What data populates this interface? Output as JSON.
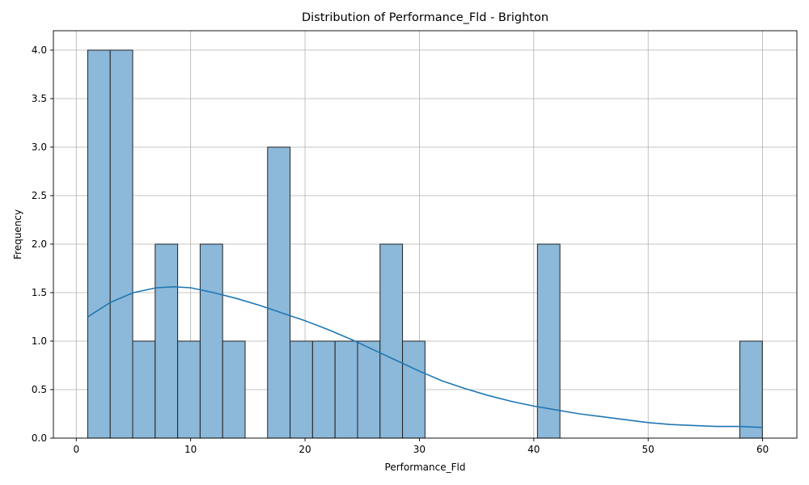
{
  "chart_data": {
    "type": "bar",
    "title": "Distribution of Performance_Fld - Brighton",
    "xlabel": "Performance_Fld",
    "ylabel": "Frequency",
    "xlim": [
      -2,
      63
    ],
    "ylim": [
      0,
      4.2
    ],
    "xticks": [
      0,
      10,
      20,
      30,
      40,
      50,
      60
    ],
    "yticks": [
      0.0,
      0.5,
      1.0,
      1.5,
      2.0,
      2.5,
      3.0,
      3.5,
      4.0
    ],
    "ytick_labels": [
      "0.0",
      "0.5",
      "1.0",
      "1.5",
      "2.0",
      "2.5",
      "3.0",
      "3.5",
      "4.0"
    ],
    "grid": true,
    "bin_start": 1.0,
    "bin_width": 1.966,
    "counts": [
      4,
      4,
      1,
      2,
      1,
      2,
      1,
      0,
      3,
      1,
      1,
      1,
      1,
      2,
      1,
      0,
      0,
      0,
      0,
      0,
      2,
      0,
      0,
      0,
      0,
      0,
      0,
      0,
      0,
      1
    ],
    "bar_color": "#8cb8d9",
    "bar_edge_color": "#222222",
    "kde": {
      "color": "#1f77b4",
      "x": [
        1,
        3,
        5,
        7,
        8.5,
        10,
        12,
        14,
        16,
        18,
        20,
        22,
        24,
        26,
        28,
        30,
        32,
        34,
        36,
        38,
        40,
        42,
        44,
        46,
        48,
        50,
        52,
        54,
        56,
        58,
        60
      ],
      "y": [
        1.25,
        1.4,
        1.5,
        1.55,
        1.56,
        1.55,
        1.5,
        1.44,
        1.37,
        1.29,
        1.21,
        1.12,
        1.02,
        0.91,
        0.8,
        0.69,
        0.59,
        0.51,
        0.44,
        0.38,
        0.33,
        0.29,
        0.25,
        0.22,
        0.19,
        0.16,
        0.14,
        0.13,
        0.12,
        0.12,
        0.11
      ]
    }
  }
}
